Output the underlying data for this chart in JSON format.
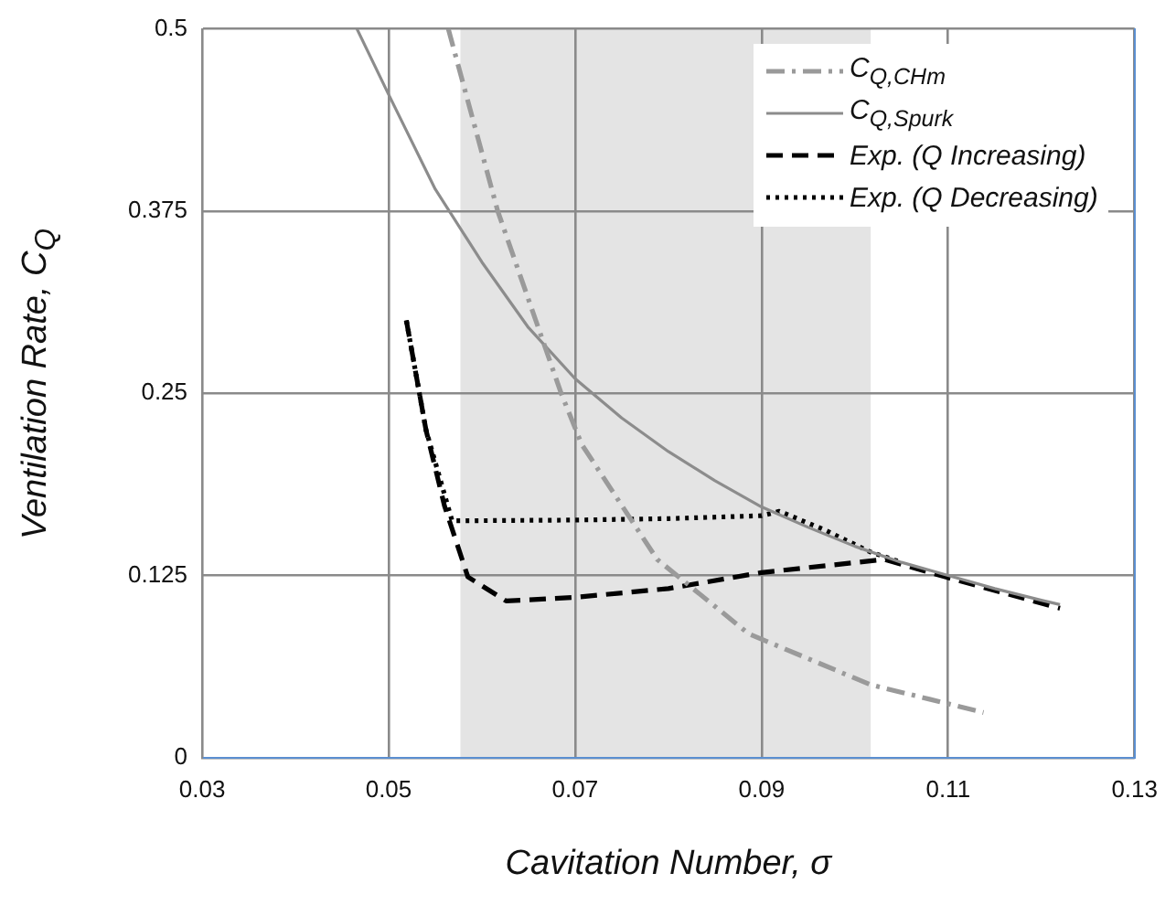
{
  "chart_data": {
    "type": "line",
    "xlabel": "Cavitation Number, σ",
    "ylabel": "Ventilation Rate, C$_{Q}$",
    "xlim": [
      0.03,
      0.13
    ],
    "xticks": [
      0.03,
      0.05,
      0.07,
      0.09,
      0.11,
      0.13
    ],
    "ylim": [
      0,
      0.5
    ],
    "yticks": [
      0,
      0.125,
      0.25,
      0.375,
      0.5
    ],
    "grid": true,
    "legend": "top right",
    "marker": "none",
    "bands": [
      {
        "axis": "x",
        "from": 0.0577,
        "to": 0.1017,
        "color": "#e4e4e4"
      }
    ],
    "series": [
      {
        "name": "C$_{Q,CHm}$",
        "color": "#9a9a9a",
        "line_style": "dashdot",
        "x": [
          0.0564,
          0.0617,
          0.0685,
          0.0707,
          0.0788,
          0.0886,
          0.1017,
          0.1138
        ],
        "values": [
          0.5,
          0.375,
          0.25,
          0.215,
          0.136,
          0.085,
          0.05,
          0.031
        ]
      },
      {
        "name": "C$_{Q,Spurk}$",
        "color": "#8c8c8c",
        "line_style": "solid",
        "x": [
          0.0466,
          0.05,
          0.055,
          0.06,
          0.065,
          0.07,
          0.075,
          0.08,
          0.085,
          0.09,
          0.095,
          0.1,
          0.105,
          0.11,
          0.115,
          0.12,
          0.122
        ],
        "values": [
          0.5,
          0.455,
          0.39,
          0.34,
          0.295,
          0.26,
          0.233,
          0.21,
          0.19,
          0.172,
          0.158,
          0.145,
          0.134,
          0.125,
          0.116,
          0.108,
          0.105
        ]
      },
      {
        "name": "Exp. (Q Increasing)",
        "color": "#000000",
        "line_style": "dashed",
        "x": [
          0.0519,
          0.054,
          0.056,
          0.0585,
          0.0626,
          0.07,
          0.08,
          0.09,
          0.1032,
          0.1097,
          0.122
        ],
        "values": [
          0.3,
          0.225,
          0.1725,
          0.124,
          0.1075,
          0.11,
          0.116,
          0.127,
          0.136,
          0.124,
          0.1025
        ]
      },
      {
        "name": "Exp. (Q Decreasing)",
        "color": "#000000",
        "line_style": "dotted",
        "x": [
          0.0519,
          0.054,
          0.0568,
          0.07,
          0.08,
          0.09,
          0.0919,
          0.0965,
          0.1017,
          0.105
        ],
        "values": [
          0.3,
          0.225,
          0.1625,
          0.163,
          0.164,
          0.166,
          0.169,
          0.157,
          0.141,
          0.134
        ]
      }
    ]
  }
}
